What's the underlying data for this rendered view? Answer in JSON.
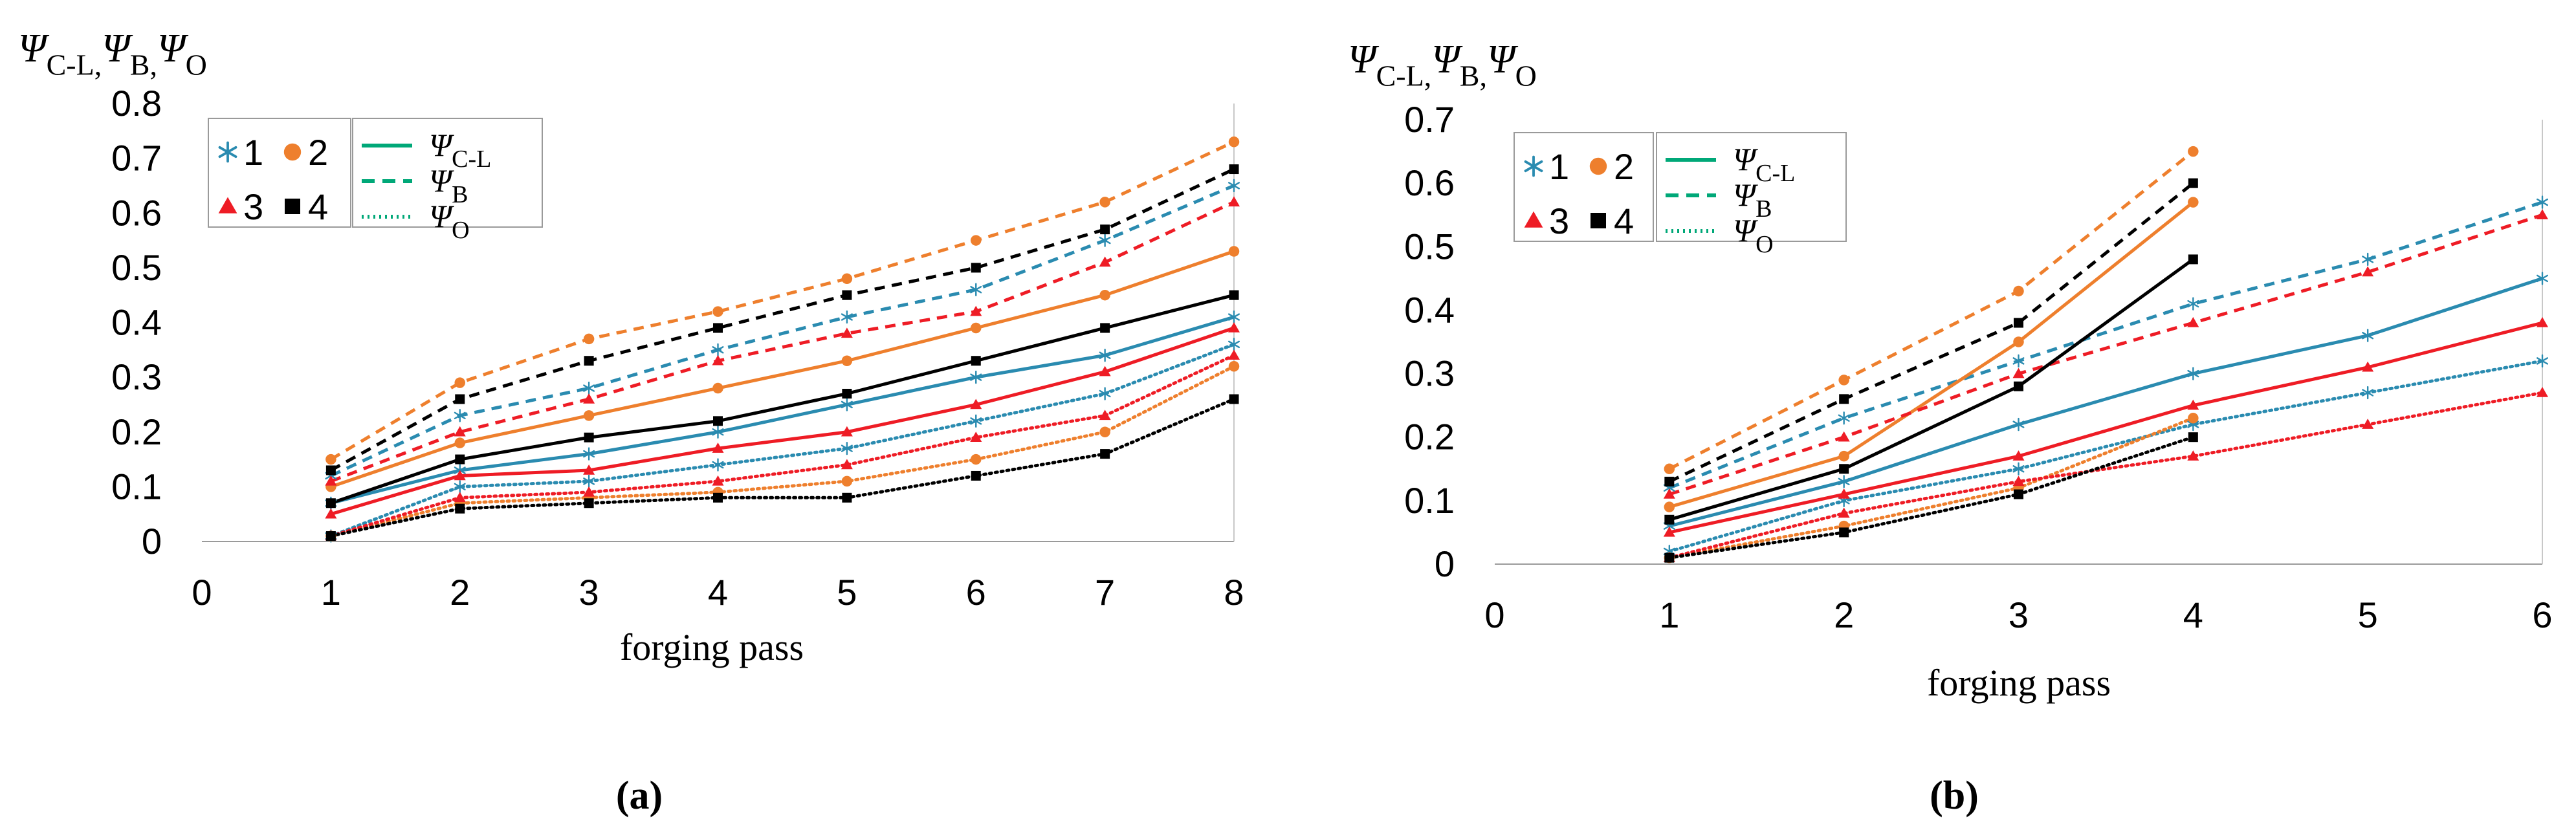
{
  "y_title_main": "Ψ",
  "y_title_parts": [
    {
      "main": "Ψ",
      "sub": "C-L",
      "sep": ","
    },
    {
      "main": "Ψ",
      "sub": "B",
      "sep": ","
    },
    {
      "main": "Ψ",
      "sub": "O",
      "sep": ""
    }
  ],
  "legend_markers": [
    {
      "label": "1",
      "symbol": "star",
      "color": "#2a8bb0"
    },
    {
      "label": "2",
      "symbol": "circle",
      "color": "#ee7f2d"
    },
    {
      "label": "3",
      "symbol": "triangle",
      "color": "#ee1c25"
    },
    {
      "label": "4",
      "symbol": "square",
      "color": "#000000"
    }
  ],
  "legend_lines": [
    {
      "main": "Ψ",
      "sub": "C-L",
      "style": "solid",
      "color": "#00a878"
    },
    {
      "main": "Ψ",
      "sub": "B",
      "style": "dashed",
      "color": "#00a878"
    },
    {
      "main": "Ψ",
      "sub": "O",
      "style": "dotted",
      "color": "#00a878"
    }
  ],
  "chart_data": [
    {
      "type": "line",
      "panel_label": "(a)",
      "xlabel": "forging pass",
      "x_ticks": [
        "0",
        "1",
        "2",
        "3",
        "4",
        "5",
        "6",
        "7",
        "8"
      ],
      "xlim": [
        0,
        8
      ],
      "ylim": [
        0,
        0.8
      ],
      "y_ticks": [
        "0",
        "0.1",
        "0.2",
        "0.3",
        "0.4",
        "0.5",
        "0.6",
        "0.7",
        "0.8"
      ],
      "grid": false,
      "series": [
        {
          "specimen": "1",
          "kind": "C-L",
          "color": "#2a8bb0",
          "marker": "star",
          "style": "solid",
          "x": [
            1,
            2,
            3,
            4,
            5,
            6,
            7,
            8
          ],
          "values": [
            0.07,
            0.13,
            0.16,
            0.2,
            0.25,
            0.3,
            0.34,
            0.41
          ]
        },
        {
          "specimen": "1",
          "kind": "B",
          "color": "#2a8bb0",
          "marker": "star",
          "style": "dashed",
          "x": [
            1,
            2,
            3,
            4,
            5,
            6,
            7,
            8
          ],
          "values": [
            0.12,
            0.23,
            0.28,
            0.35,
            0.41,
            0.46,
            0.55,
            0.65
          ]
        },
        {
          "specimen": "1",
          "kind": "O",
          "color": "#2a8bb0",
          "marker": "star",
          "style": "dotted",
          "x": [
            1,
            2,
            3,
            4,
            5,
            6,
            7,
            8
          ],
          "values": [
            0.01,
            0.1,
            0.11,
            0.14,
            0.17,
            0.22,
            0.27,
            0.36
          ]
        },
        {
          "specimen": "2",
          "kind": "C-L",
          "color": "#ee7f2d",
          "marker": "circle",
          "style": "solid",
          "x": [
            1,
            2,
            3,
            4,
            5,
            6,
            7,
            8
          ],
          "values": [
            0.1,
            0.18,
            0.23,
            0.28,
            0.33,
            0.39,
            0.45,
            0.53
          ]
        },
        {
          "specimen": "2",
          "kind": "B",
          "color": "#ee7f2d",
          "marker": "circle",
          "style": "dashed",
          "x": [
            1,
            2,
            3,
            4,
            5,
            6,
            7,
            8
          ],
          "values": [
            0.15,
            0.29,
            0.37,
            0.42,
            0.48,
            0.55,
            0.62,
            0.73
          ]
        },
        {
          "specimen": "2",
          "kind": "O",
          "color": "#ee7f2d",
          "marker": "circle",
          "style": "dotted",
          "x": [
            1,
            2,
            3,
            4,
            5,
            6,
            7,
            8
          ],
          "values": [
            0.01,
            0.07,
            0.08,
            0.09,
            0.11,
            0.15,
            0.2,
            0.32
          ]
        },
        {
          "specimen": "3",
          "kind": "C-L",
          "color": "#ee1c25",
          "marker": "triangle",
          "style": "solid",
          "x": [
            1,
            2,
            3,
            4,
            5,
            6,
            7,
            8
          ],
          "values": [
            0.05,
            0.12,
            0.13,
            0.17,
            0.2,
            0.25,
            0.31,
            0.39
          ]
        },
        {
          "specimen": "3",
          "kind": "B",
          "color": "#ee1c25",
          "marker": "triangle",
          "style": "dashed",
          "x": [
            1,
            2,
            3,
            4,
            5,
            6,
            7,
            8
          ],
          "values": [
            0.11,
            0.2,
            0.26,
            0.33,
            0.38,
            0.42,
            0.51,
            0.62
          ]
        },
        {
          "specimen": "3",
          "kind": "O",
          "color": "#ee1c25",
          "marker": "triangle",
          "style": "dotted",
          "x": [
            1,
            2,
            3,
            4,
            5,
            6,
            7,
            8
          ],
          "values": [
            0.01,
            0.08,
            0.09,
            0.11,
            0.14,
            0.19,
            0.23,
            0.34
          ]
        },
        {
          "specimen": "4",
          "kind": "C-L",
          "color": "#000000",
          "marker": "square",
          "style": "solid",
          "x": [
            1,
            2,
            3,
            4,
            5,
            6,
            7,
            8
          ],
          "values": [
            0.07,
            0.15,
            0.19,
            0.22,
            0.27,
            0.33,
            0.39,
            0.45
          ]
        },
        {
          "specimen": "4",
          "kind": "B",
          "color": "#000000",
          "marker": "square",
          "style": "dashed",
          "x": [
            1,
            2,
            3,
            4,
            5,
            6,
            7,
            8
          ],
          "values": [
            0.13,
            0.26,
            0.33,
            0.39,
            0.45,
            0.5,
            0.57,
            0.68
          ]
        },
        {
          "specimen": "4",
          "kind": "O",
          "color": "#000000",
          "marker": "square",
          "style": "dotted",
          "x": [
            1,
            2,
            3,
            4,
            5,
            6,
            7,
            8
          ],
          "values": [
            0.01,
            0.06,
            0.07,
            0.08,
            0.08,
            0.12,
            0.16,
            0.26
          ]
        }
      ]
    },
    {
      "type": "line",
      "panel_label": "(b)",
      "xlabel": "forging pass",
      "x_ticks": [
        "0",
        "1",
        "2",
        "3",
        "4",
        "5",
        "6"
      ],
      "xlim": [
        0,
        6
      ],
      "ylim": [
        0,
        0.7
      ],
      "y_ticks": [
        "0",
        "0.1",
        "0.2",
        "0.3",
        "0.4",
        "0.5",
        "0.6",
        "0.7"
      ],
      "grid": false,
      "series": [
        {
          "specimen": "1",
          "kind": "C-L",
          "color": "#2a8bb0",
          "marker": "star",
          "style": "solid",
          "x": [
            1,
            2,
            3,
            4,
            5,
            6
          ],
          "values": [
            0.06,
            0.13,
            0.22,
            0.3,
            0.36,
            0.45
          ]
        },
        {
          "specimen": "1",
          "kind": "B",
          "color": "#2a8bb0",
          "marker": "star",
          "style": "dashed",
          "x": [
            1,
            2,
            3,
            4,
            5,
            6
          ],
          "values": [
            0.12,
            0.23,
            0.32,
            0.41,
            0.48,
            0.57
          ]
        },
        {
          "specimen": "1",
          "kind": "O",
          "color": "#2a8bb0",
          "marker": "star",
          "style": "dotted",
          "x": [
            1,
            2,
            3,
            4,
            5,
            6
          ],
          "values": [
            0.02,
            0.1,
            0.15,
            0.22,
            0.27,
            0.32
          ]
        },
        {
          "specimen": "2",
          "kind": "C-L",
          "color": "#ee7f2d",
          "marker": "circle",
          "style": "solid",
          "x": [
            1,
            2,
            3,
            4
          ],
          "values": [
            0.09,
            0.17,
            0.35,
            0.57
          ]
        },
        {
          "specimen": "2",
          "kind": "B",
          "color": "#ee7f2d",
          "marker": "circle",
          "style": "dashed",
          "x": [
            1,
            2,
            3,
            4
          ],
          "values": [
            0.15,
            0.29,
            0.43,
            0.65
          ]
        },
        {
          "specimen": "2",
          "kind": "O",
          "color": "#ee7f2d",
          "marker": "circle",
          "style": "dotted",
          "x": [
            1,
            2,
            3,
            4
          ],
          "values": [
            0.01,
            0.06,
            0.12,
            0.23
          ]
        },
        {
          "specimen": "3",
          "kind": "C-L",
          "color": "#ee1c25",
          "marker": "triangle",
          "style": "solid",
          "x": [
            1,
            2,
            3,
            4,
            5,
            6
          ],
          "values": [
            0.05,
            0.11,
            0.17,
            0.25,
            0.31,
            0.38
          ]
        },
        {
          "specimen": "3",
          "kind": "B",
          "color": "#ee1c25",
          "marker": "triangle",
          "style": "dashed",
          "x": [
            1,
            2,
            3,
            4,
            5,
            6
          ],
          "values": [
            0.11,
            0.2,
            0.3,
            0.38,
            0.46,
            0.55
          ]
        },
        {
          "specimen": "3",
          "kind": "O",
          "color": "#ee1c25",
          "marker": "triangle",
          "style": "dotted",
          "x": [
            1,
            2,
            3,
            4,
            5,
            6
          ],
          "values": [
            0.01,
            0.08,
            0.13,
            0.17,
            0.22,
            0.27
          ]
        },
        {
          "specimen": "4",
          "kind": "C-L",
          "color": "#000000",
          "marker": "square",
          "style": "solid",
          "x": [
            1,
            2,
            3,
            4
          ],
          "values": [
            0.07,
            0.15,
            0.28,
            0.48
          ]
        },
        {
          "specimen": "4",
          "kind": "B",
          "color": "#000000",
          "marker": "square",
          "style": "dashed",
          "x": [
            1,
            2,
            3,
            4
          ],
          "values": [
            0.13,
            0.26,
            0.38,
            0.6
          ]
        },
        {
          "specimen": "4",
          "kind": "O",
          "color": "#000000",
          "marker": "square",
          "style": "dotted",
          "x": [
            1,
            2,
            3,
            4
          ],
          "values": [
            0.01,
            0.05,
            0.11,
            0.2
          ]
        }
      ]
    }
  ]
}
